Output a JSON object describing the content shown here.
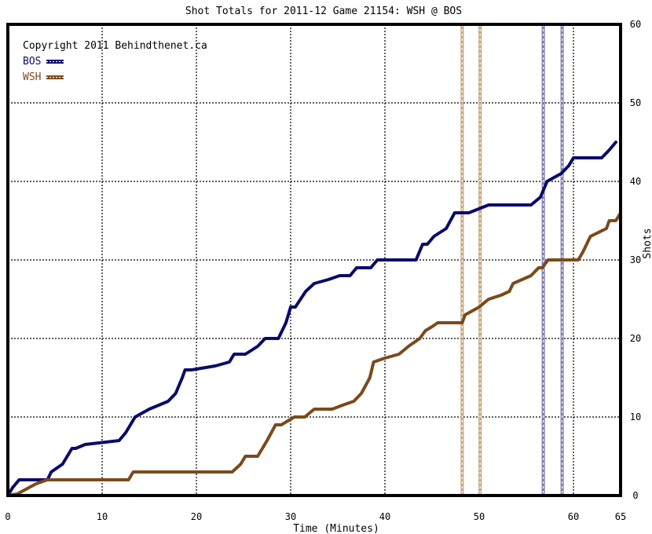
{
  "chart_data": {
    "type": "line",
    "title": "Shot Totals for 2011-12 Game 21154: WSH @ BOS",
    "xlabel": "Time (Minutes)",
    "ylabel": "Shots",
    "xlim": [
      0,
      65
    ],
    "ylim": [
      0,
      60
    ],
    "x_ticks": [
      0,
      10,
      20,
      30,
      40,
      50,
      60,
      65
    ],
    "y_ticks": [
      0,
      10,
      20,
      30,
      40,
      50,
      60
    ],
    "grid": true,
    "legend_position": "top-left",
    "copyright": "Copyright 2011 Behindthenet.ca",
    "series": [
      {
        "name": "BOS",
        "color": "#0b0b6b",
        "points": [
          [
            0,
            0
          ],
          [
            0.5,
            1
          ],
          [
            1.2,
            2
          ],
          [
            4.2,
            2
          ],
          [
            4.6,
            3
          ],
          [
            5.8,
            4
          ],
          [
            6.3,
            5
          ],
          [
            6.8,
            6
          ],
          [
            7.2,
            6
          ],
          [
            8.2,
            6.5
          ],
          [
            11.8,
            7
          ],
          [
            12.5,
            8
          ],
          [
            13,
            9
          ],
          [
            13.5,
            10
          ],
          [
            15,
            11
          ],
          [
            17,
            12
          ],
          [
            17.8,
            13
          ],
          [
            18.5,
            15
          ],
          [
            18.8,
            16
          ],
          [
            19.5,
            16
          ],
          [
            22,
            16.5
          ],
          [
            23.5,
            17
          ],
          [
            24,
            18
          ],
          [
            25.2,
            18
          ],
          [
            26.5,
            19
          ],
          [
            27.3,
            20
          ],
          [
            28.7,
            20
          ],
          [
            29.5,
            22
          ],
          [
            30,
            24
          ],
          [
            30.5,
            24
          ],
          [
            31.6,
            26
          ],
          [
            32.5,
            27
          ],
          [
            34,
            27.5
          ],
          [
            35.2,
            28
          ],
          [
            36.3,
            28
          ],
          [
            37,
            29
          ],
          [
            38.5,
            29
          ],
          [
            39.2,
            30
          ],
          [
            43.3,
            30
          ],
          [
            44,
            32
          ],
          [
            44.5,
            32
          ],
          [
            45.2,
            33
          ],
          [
            46.5,
            34
          ],
          [
            47.4,
            36
          ],
          [
            48.9,
            36
          ],
          [
            51,
            37
          ],
          [
            53,
            37
          ],
          [
            55.5,
            37
          ],
          [
            56.5,
            38
          ],
          [
            57.2,
            40
          ],
          [
            58.7,
            41
          ],
          [
            59.5,
            42
          ],
          [
            60,
            43
          ],
          [
            63,
            43
          ],
          [
            63.8,
            44
          ],
          [
            64.5,
            45
          ]
        ]
      },
      {
        "name": "WSH",
        "color": "#7b4a1a",
        "points": [
          [
            0,
            0
          ],
          [
            1,
            0.2
          ],
          [
            3,
            1.5
          ],
          [
            4.2,
            2
          ],
          [
            12.8,
            2
          ],
          [
            13.3,
            3
          ],
          [
            23.8,
            3
          ],
          [
            24.7,
            4
          ],
          [
            25.2,
            5
          ],
          [
            26.5,
            5
          ],
          [
            27.5,
            7
          ],
          [
            28.4,
            9
          ],
          [
            29,
            9
          ],
          [
            30.4,
            10
          ],
          [
            31.5,
            10
          ],
          [
            32.5,
            11
          ],
          [
            34.4,
            11
          ],
          [
            35.5,
            11.5
          ],
          [
            36.7,
            12
          ],
          [
            37.5,
            13
          ],
          [
            38.4,
            15
          ],
          [
            38.8,
            17
          ],
          [
            40,
            17.5
          ],
          [
            41.5,
            18
          ],
          [
            42.5,
            19
          ],
          [
            43.7,
            20
          ],
          [
            44.3,
            21
          ],
          [
            45,
            21.5
          ],
          [
            45.6,
            22
          ],
          [
            48.2,
            22
          ],
          [
            48.5,
            23
          ],
          [
            50,
            24
          ],
          [
            51,
            25
          ],
          [
            52.3,
            25.5
          ],
          [
            53.2,
            26
          ],
          [
            53.6,
            27
          ],
          [
            55.5,
            28
          ],
          [
            56.3,
            29
          ],
          [
            56.7,
            29
          ],
          [
            57.3,
            30
          ],
          [
            60.5,
            30
          ],
          [
            61,
            31
          ],
          [
            61.8,
            33
          ],
          [
            63.5,
            34
          ],
          [
            63.8,
            35
          ],
          [
            64.5,
            35
          ],
          [
            65,
            36
          ]
        ]
      }
    ],
    "event_lines": [
      {
        "team": "WSH",
        "x": 48.2,
        "color": "#c8a880"
      },
      {
        "team": "WSH",
        "x": 50.1,
        "color": "#c8a880"
      },
      {
        "team": "BOS",
        "x": 56.8,
        "color": "#8080b0"
      },
      {
        "team": "BOS",
        "x": 58.8,
        "color": "#8080b0"
      }
    ]
  }
}
